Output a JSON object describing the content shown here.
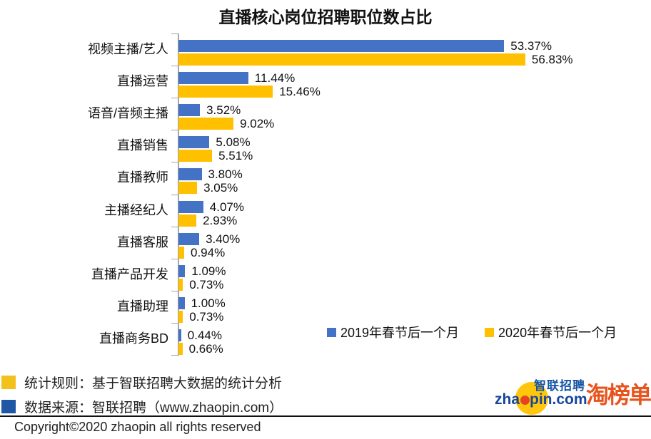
{
  "chart_data": {
    "type": "bar",
    "orientation": "horizontal",
    "title": "直播核心岗位招聘职位数占比",
    "categories": [
      "视频主播/艺人",
      "直播运营",
      "语音/音频主播",
      "直播销售",
      "直播教师",
      "主播经纪人",
      "直播客服",
      "直播产品开发",
      "直播助理",
      "直播商务BD"
    ],
    "series": [
      {
        "name": "2019年春节后一个月",
        "color": "#4472C4",
        "values": [
          53.37,
          11.44,
          3.52,
          5.08,
          3.8,
          4.07,
          3.4,
          1.09,
          1.0,
          0.44
        ]
      },
      {
        "name": "2020年春节后一个月",
        "color": "#FFC000",
        "values": [
          56.83,
          15.46,
          9.02,
          5.51,
          3.05,
          2.93,
          0.94,
          0.73,
          0.73,
          0.66
        ]
      }
    ],
    "value_label_format": "percent_2dp",
    "xlim": [
      0,
      60
    ],
    "grid": false,
    "legend_position": "bottom-right",
    "axis_color": "#A6A6A6"
  },
  "footer": {
    "notes": [
      {
        "marker_name": "yellow-square",
        "marker_color": "#F3C11B",
        "text": "统计规则：基于智联招聘大数据的统计分析"
      },
      {
        "marker_name": "blue-square",
        "marker_color": "#1F57A5",
        "text": "数据来源：智联招聘（www.zhaopin.com）"
      }
    ],
    "copyright": "Copyright©2020 zhaopin all rights reserved"
  },
  "logos": {
    "zhaopin_en_part1": "zha",
    "zhaopin_en_part2": "pin.com",
    "zhaopin_cn": "智联招聘",
    "taobangdan": "淘榜单"
  }
}
